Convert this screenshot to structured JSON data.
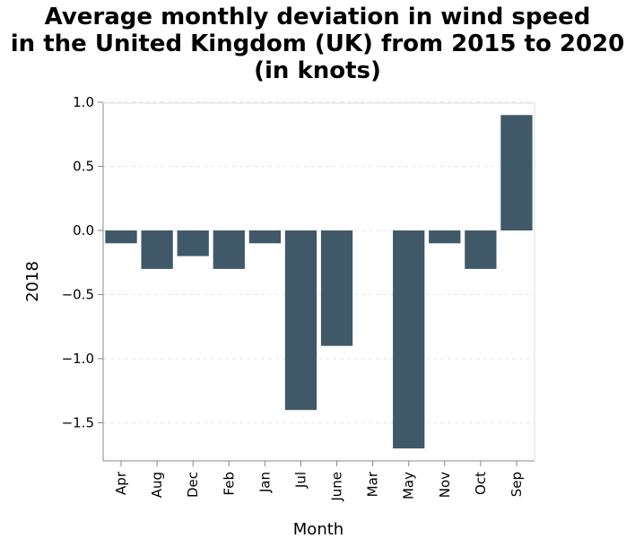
{
  "chart_data": {
    "type": "bar",
    "title_lines": [
      "Average monthly deviation in wind speed",
      "in the United Kingdom (UK) from 2015 to 2020",
      "(in knots)"
    ],
    "xlabel": "Month",
    "ylabel": "2018",
    "categories": [
      "Apr",
      "Aug",
      "Dec",
      "Feb",
      "Jan",
      "Jul",
      "June",
      "Mar",
      "May",
      "Nov",
      "Oct",
      "Sep"
    ],
    "values": [
      -0.1,
      -0.3,
      -0.2,
      -0.3,
      -0.1,
      -1.4,
      -0.9,
      0,
      -1.7,
      -0.1,
      -0.3,
      0.9
    ],
    "ylim": [
      -1.78,
      1.0
    ],
    "yticks": [
      1.0,
      0.5,
      0.0,
      -0.5,
      -1.0,
      -1.5
    ],
    "ytick_labels": [
      "1.0",
      "0.5",
      "0.0",
      "−0.5",
      "−1.0",
      "−1.5"
    ],
    "grid": true,
    "bar_color": "#3f5968"
  }
}
